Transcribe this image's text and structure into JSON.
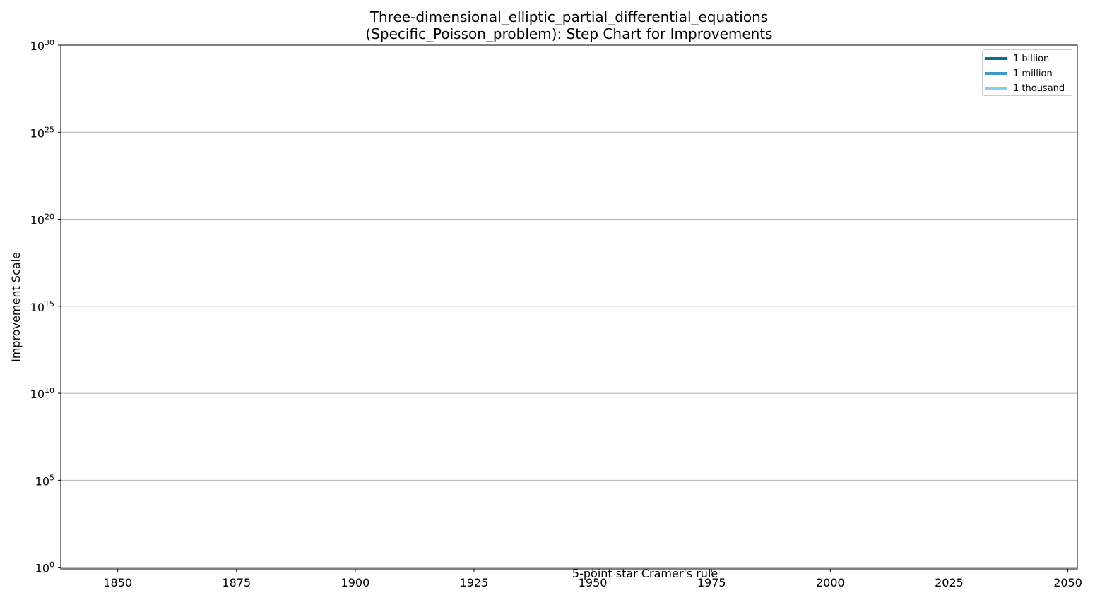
{
  "chart_data": {
    "type": "line",
    "title_lines": [
      "Three-dimensional_elliptic_partial_differential_equations",
      "(Specific_Poisson_problem): Step Chart for Improvements"
    ],
    "xlabel": "",
    "ylabel": "Improvement Scale",
    "xlim": [
      1838,
      2052
    ],
    "x_ticks": [
      1850,
      1875,
      1900,
      1925,
      1950,
      1975,
      2000,
      2025,
      2050
    ],
    "y_scale": "log",
    "ylim": [
      0.8,
      1e+30
    ],
    "y_ticks": [
      {
        "value": 1,
        "base": "10",
        "exp": "0"
      },
      {
        "value": 100000.0,
        "base": "10",
        "exp": "5"
      },
      {
        "value": 10000000000.0,
        "base": "10",
        "exp": "10"
      },
      {
        "value": 1000000000000000.0,
        "base": "10",
        "exp": "15"
      },
      {
        "value": 1e+20,
        "base": "10",
        "exp": "20"
      },
      {
        "value": 1e+25,
        "base": "10",
        "exp": "25"
      },
      {
        "value": 1e+30,
        "base": "10",
        "exp": "30"
      }
    ],
    "grid_y": true,
    "grid_x": false,
    "legend_position": "top-right",
    "series": [
      {
        "name": "1 billion",
        "color": "#146b8f",
        "x": [],
        "y": []
      },
      {
        "name": "1 million",
        "color": "#3b9cc4",
        "x": [],
        "y": []
      },
      {
        "name": "1 thousand",
        "color": "#7fd0f5",
        "x": [],
        "y": []
      }
    ],
    "annotations": [
      {
        "text": "5-point star Cramer's rule",
        "x": 1961,
        "y": 1
      }
    ]
  }
}
